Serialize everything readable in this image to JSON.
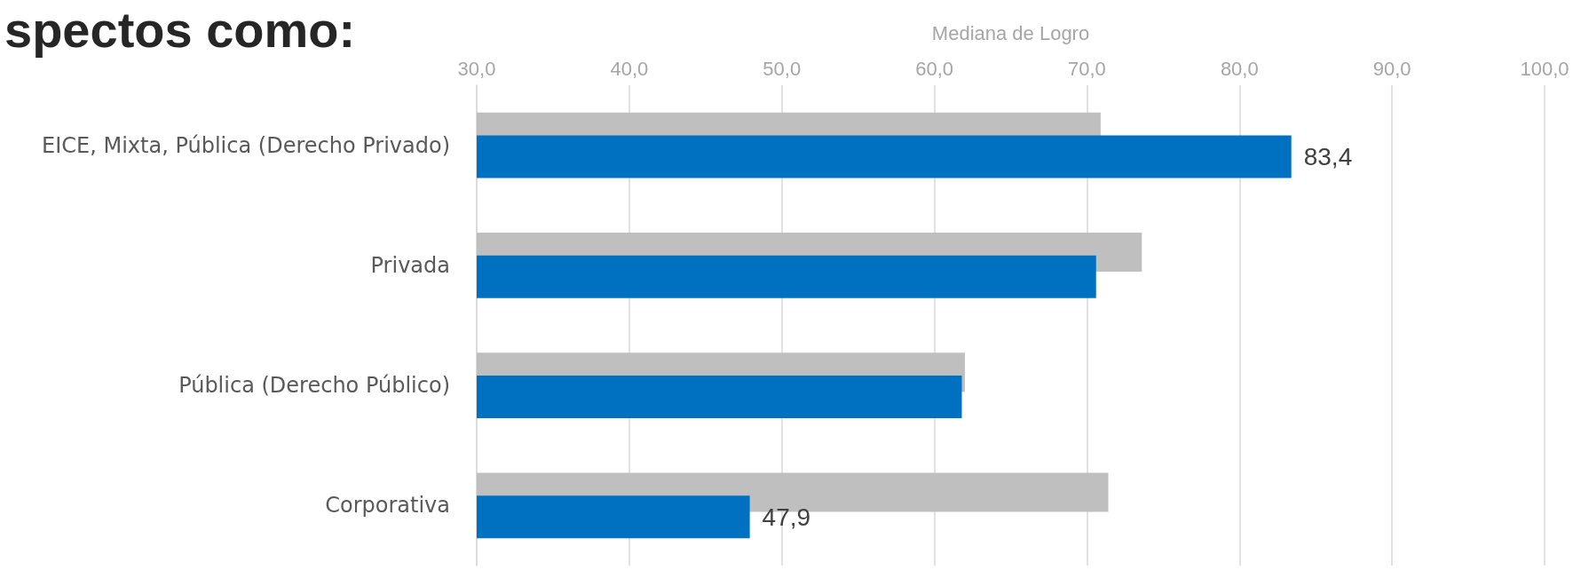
{
  "chart_data": {
    "type": "bar",
    "orientation": "horizontal",
    "title": "spectos como:",
    "xlabel": "Mediana de Logro",
    "categories": [
      "EICE, Mixta, Pública (Derecho Privado)",
      "Privada",
      "Pública (Derecho Público)",
      "Corporativa"
    ],
    "series": [
      {
        "color": "#bfbfbf",
        "values": [
          70.9,
          73.6,
          62.0,
          71.4
        ]
      },
      {
        "color": "#0070c0",
        "values": [
          83.4,
          70.6,
          61.8,
          47.9
        ],
        "value_labels": [
          "83,4",
          null,
          null,
          "47,9"
        ]
      }
    ],
    "xlim": [
      30,
      100
    ],
    "xticks": [
      {
        "value": 30,
        "label": "30,0"
      },
      {
        "value": 40,
        "label": "40,0"
      },
      {
        "value": 50,
        "label": "50,0"
      },
      {
        "value": 60,
        "label": "60,0"
      },
      {
        "value": 70,
        "label": "70,0"
      },
      {
        "value": 80,
        "label": "80,0"
      },
      {
        "value": 90,
        "label": "90,0"
      },
      {
        "value": 100,
        "label": "100,0"
      }
    ],
    "grid": "x"
  }
}
